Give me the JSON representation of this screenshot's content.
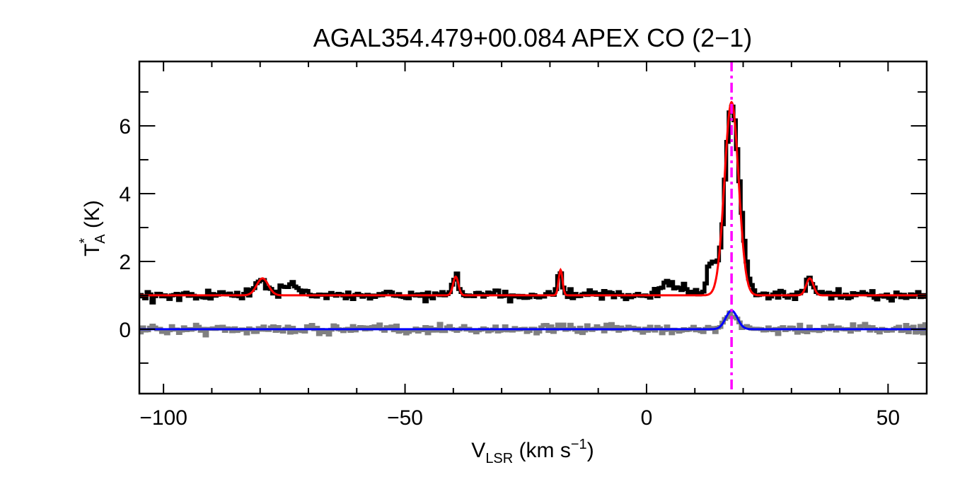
{
  "chart_data": {
    "type": "line",
    "title": "AGAL354.479+00.084  APEX CO (2−1)",
    "xlabel": {
      "main": "V",
      "sub": "LSR",
      "unit_pre": " (km s",
      "sup": "−1",
      "unit_post": ")"
    },
    "ylabel": {
      "main": "T",
      "sup": "*",
      "sub": "A",
      "unit": " (K)"
    },
    "xlim": [
      -105,
      58
    ],
    "ylim": [
      -1.9,
      7.9
    ],
    "x_ticks": [
      -100,
      -50,
      0,
      50
    ],
    "x_tick_labels": [
      "−100",
      "−50",
      "0",
      "50"
    ],
    "y_ticks": [
      0,
      2,
      4,
      6
    ],
    "y_tick_labels": [
      "0",
      "2",
      "4",
      "6"
    ],
    "x_minor_step": 10,
    "y_minor_step": 1,
    "grid": false,
    "vline": {
      "x": 17.6,
      "color": "#ff00ff",
      "style": "dash-dot"
    },
    "series": [
      {
        "role": "observed spectrum (offset +1 K)",
        "style": "histogram",
        "color": "#000000",
        "baseline": 1.0,
        "noise_rms": 0.12,
        "features": [
          {
            "center": -80.0,
            "amplitude": 0.45,
            "sigma": 1.3
          },
          {
            "center": -73.5,
            "amplitude": 0.35,
            "sigma": 1.6
          },
          {
            "center": -39.5,
            "amplitude": 0.55,
            "sigma": 0.6
          },
          {
            "center": -18.0,
            "amplitude": 0.75,
            "sigma": 0.45
          },
          {
            "center": 5.5,
            "amplitude": 0.35,
            "sigma": 2.0
          },
          {
            "center": 13.5,
            "amplitude": 1.0,
            "sigma": 0.9
          },
          {
            "center": 17.6,
            "amplitude": 5.55,
            "sigma": 1.35
          },
          {
            "center": 20.0,
            "amplitude": 0.9,
            "sigma": 1.0
          },
          {
            "center": 33.8,
            "amplitude": 0.5,
            "sigma": 0.7
          }
        ]
      },
      {
        "role": "gaussian fit to observed spectrum",
        "style": "line",
        "color": "#ff0000",
        "baseline": 1.0,
        "features": [
          {
            "center": -79.5,
            "amplitude": 0.5,
            "sigma": 1.2
          },
          {
            "center": -39.5,
            "amplitude": 0.55,
            "sigma": 0.55
          },
          {
            "center": -17.8,
            "amplitude": 0.75,
            "sigma": 0.4
          },
          {
            "center": 17.6,
            "amplitude": 5.7,
            "sigma": 1.45
          },
          {
            "center": 33.8,
            "amplitude": 0.5,
            "sigma": 0.75
          }
        ]
      },
      {
        "role": "residual spectrum",
        "style": "histogram",
        "color": "#808080",
        "baseline": 0.0,
        "noise_rms": 0.12,
        "features": [
          {
            "center": 17.6,
            "amplitude": 0.45,
            "sigma": 1.2
          }
        ]
      },
      {
        "role": "gaussian fit to residual",
        "style": "line",
        "color": "#0000ff",
        "baseline": 0.0,
        "features": [
          {
            "center": 17.6,
            "amplitude": 0.55,
            "sigma": 1.2
          }
        ]
      }
    ]
  }
}
